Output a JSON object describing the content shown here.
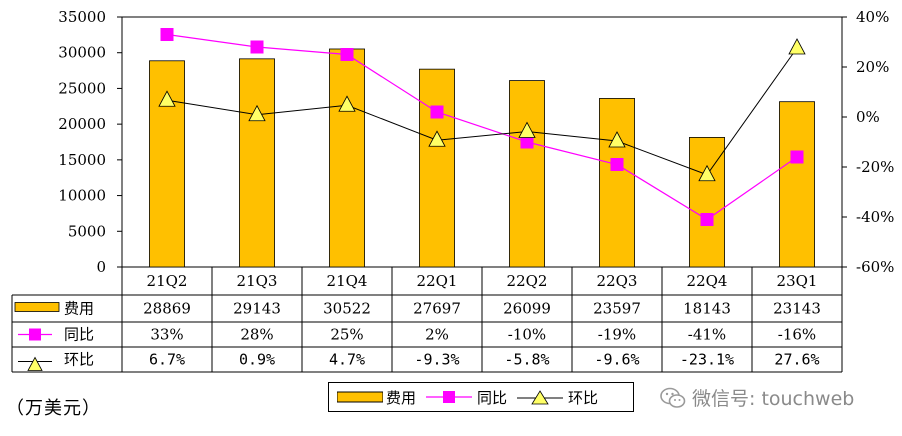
{
  "chart_data": {
    "type": "bar",
    "categories": [
      "21Q2",
      "21Q3",
      "21Q4",
      "22Q1",
      "22Q2",
      "22Q3",
      "22Q4",
      "23Q1"
    ],
    "series": [
      {
        "name": "费用",
        "kind": "bar",
        "axis": "left",
        "color": "#FFC000",
        "values": [
          28869,
          29143,
          30522,
          27697,
          26099,
          23597,
          18143,
          23143
        ]
      },
      {
        "name": "同比",
        "kind": "line",
        "axis": "right",
        "color": "#FF00FF",
        "marker": "square",
        "values": [
          33,
          28,
          25,
          2,
          -10,
          -19,
          -41,
          -16
        ]
      },
      {
        "name": "环比",
        "kind": "line",
        "axis": "right",
        "color": "#000000",
        "marker": "triangle",
        "values": [
          6.7,
          0.9,
          4.7,
          -9.3,
          -5.8,
          -9.6,
          -23.1,
          27.6
        ]
      }
    ],
    "table": {
      "rows": [
        {
          "label": "费用",
          "values": [
            "28869",
            "29143",
            "30522",
            "27697",
            "26099",
            "23597",
            "18143",
            "23143"
          ]
        },
        {
          "label": "同比",
          "values": [
            "33%",
            "28%",
            "25%",
            "2%",
            "-10%",
            "-19%",
            "-41%",
            "-16%"
          ]
        },
        {
          "label": "环比",
          "values": [
            "6.7%",
            "0.9%",
            "4.7%",
            "-9.3%",
            "-5.8%",
            "-9.6%",
            "-23.1%",
            "27.6%"
          ]
        }
      ]
    },
    "y_left": {
      "min": 0,
      "max": 35000,
      "ticks": [
        "0",
        "5000",
        "10000",
        "15000",
        "20000",
        "25000",
        "30000",
        "35000"
      ]
    },
    "y_right": {
      "min": -60,
      "max": 40,
      "ticks": [
        "-60%",
        "-40%",
        "-20%",
        "0%",
        "20%",
        "40%"
      ]
    },
    "unit_label": "（万美元）"
  },
  "legend": {
    "items": [
      "费用",
      "同比",
      "环比"
    ]
  },
  "watermark": {
    "text": "微信号: touchweb"
  }
}
